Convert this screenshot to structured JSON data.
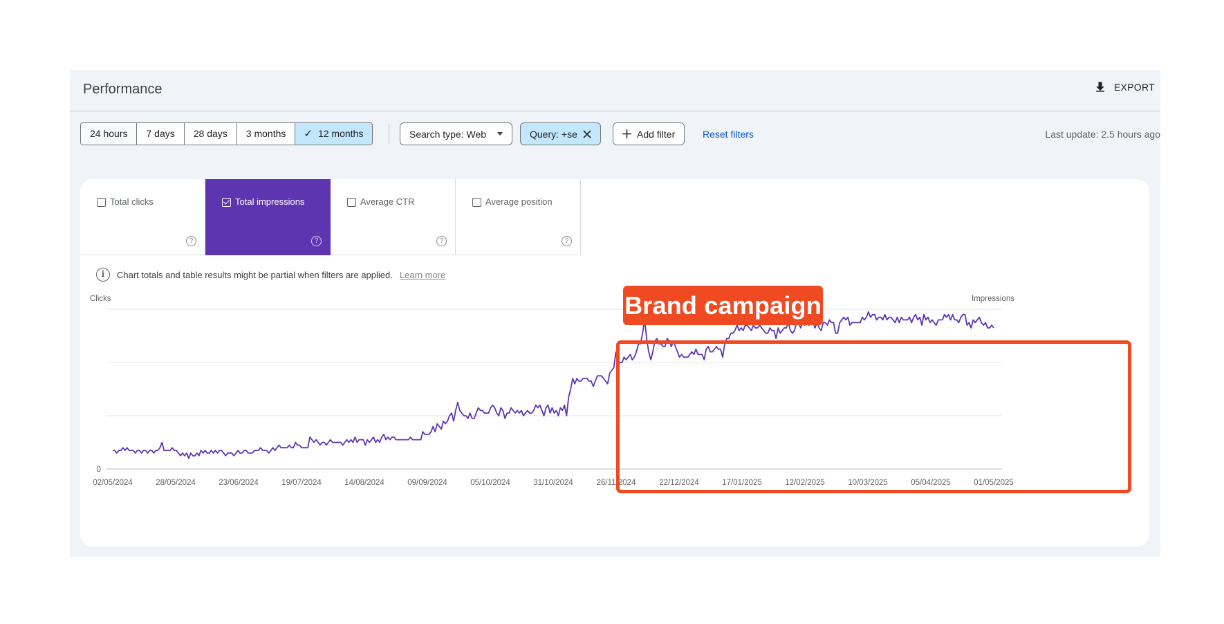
{
  "header": {
    "title": "Performance",
    "export_label": "EXPORT"
  },
  "toolbar": {
    "date_ranges": [
      "24 hours",
      "7 days",
      "28 days",
      "3 months",
      "12 months"
    ],
    "active_range": "12 months",
    "search_type": "Search type: Web",
    "query_filter": "Query: +se",
    "add_filter": "Add filter",
    "reset_filters": "Reset filters",
    "last_update": "Last update: 2.5 hours ago"
  },
  "metrics": [
    {
      "label": "Total clicks",
      "selected": false
    },
    {
      "label": "Total impressions",
      "selected": true
    },
    {
      "label": "Average CTR",
      "selected": false
    },
    {
      "label": "Average position",
      "selected": false
    }
  ],
  "notice": {
    "text": "Chart totals and table results might be partial when filters are applied.",
    "link": "Learn more"
  },
  "annotation": {
    "label": "Brand campaign"
  },
  "colors": {
    "accent": "#5e35b1",
    "annotation": "#f04a23",
    "link": "#0b57d0",
    "chip_selected": "#c2e7ff"
  },
  "chart_data": {
    "type": "line",
    "left_axis_label": "Clicks",
    "right_axis_label": "Impressions",
    "y_tick_labels": [
      "0"
    ],
    "x_tick_labels": [
      "02/05/2024",
      "28/05/2024",
      "23/06/2024",
      "19/07/2024",
      "14/08/2024",
      "09/09/2024",
      "05/10/2024",
      "31/10/2024",
      "26/11/2024",
      "22/12/2024",
      "17/01/2025",
      "12/02/2025",
      "10/03/2025",
      "05/04/2025",
      "01/05/2025"
    ],
    "x_start": "02/05/2024",
    "x_end": "01/05/2025",
    "grid": true,
    "series": [
      {
        "color": "#5e35b1",
        "values": [
          7,
          7,
          6,
          7,
          7,
          8,
          7,
          8,
          7,
          7,
          7,
          6,
          7,
          7,
          6,
          7,
          7,
          6,
          7,
          7,
          6,
          7,
          7,
          8,
          10,
          7,
          7,
          7,
          7,
          8,
          7,
          7,
          6,
          5,
          6,
          5,
          6,
          4,
          6,
          5,
          5,
          6,
          5,
          7,
          6,
          7,
          6,
          6,
          7,
          6,
          7,
          6,
          7,
          7,
          6,
          5,
          6,
          6,
          6,
          5,
          6,
          7,
          6,
          6,
          7,
          7,
          6,
          6,
          6,
          7,
          7,
          7,
          8,
          7,
          7,
          7,
          6,
          7,
          8,
          7,
          8,
          9,
          8,
          8,
          8,
          8,
          9,
          8,
          8,
          10,
          9,
          9,
          8,
          8,
          8,
          8,
          12,
          11,
          10,
          11,
          10,
          9,
          10,
          10,
          9,
          10,
          11,
          10,
          10,
          10,
          10,
          10,
          9,
          10,
          11,
          10,
          11,
          10,
          12,
          10,
          11,
          11,
          11,
          9,
          11,
          10,
          11,
          12,
          10,
          11,
          10,
          12,
          13,
          11,
          12,
          11,
          12,
          12,
          11,
          11,
          11,
          11,
          11,
          11,
          11,
          12,
          11,
          11,
          11,
          11,
          11,
          14,
          13,
          13,
          13,
          14,
          16,
          14,
          17,
          16,
          15,
          18,
          17,
          18,
          20,
          21,
          18,
          22,
          25,
          22,
          21,
          20,
          20,
          19,
          21,
          19,
          19,
          21,
          23,
          22,
          22,
          21,
          21,
          21,
          23,
          24,
          23,
          21,
          20,
          23,
          22,
          19,
          21,
          21,
          23,
          22,
          21,
          22,
          21,
          22,
          20,
          21,
          22,
          21,
          21,
          22,
          24,
          23,
          24,
          22,
          20,
          23,
          24,
          21,
          23,
          21,
          22,
          20,
          23,
          22,
          24,
          20,
          27,
          30,
          34,
          32,
          34,
          33,
          33,
          34,
          34,
          34,
          33,
          33,
          31,
          33,
          35,
          35,
          35,
          34,
          33,
          32,
          36,
          37,
          38,
          44,
          39,
          40,
          40,
          42,
          41,
          42,
          43,
          41,
          42,
          44,
          47,
          47,
          51,
          56,
          49,
          44,
          41,
          44,
          48,
          49,
          47,
          47,
          46,
          46,
          49,
          48,
          46,
          48,
          46,
          44,
          42,
          43,
          42,
          42,
          42,
          43,
          44,
          43,
          45,
          43,
          43,
          43,
          41,
          45,
          46,
          44,
          44,
          45,
          46,
          45,
          45,
          42,
          47,
          49,
          49,
          51,
          51,
          52,
          54,
          52,
          53,
          52,
          54,
          54,
          53,
          52,
          54,
          53,
          53,
          54,
          53,
          52,
          51,
          51,
          53,
          52,
          52,
          49,
          53,
          51,
          52,
          53,
          53,
          55,
          52,
          51,
          52,
          55,
          55,
          53,
          55,
          54,
          55,
          54,
          55,
          55,
          53,
          55,
          53,
          52,
          55,
          55,
          54,
          56,
          55,
          55,
          51,
          51,
          55,
          56,
          57,
          56,
          57,
          54,
          55,
          55,
          55,
          55,
          55,
          57,
          56,
          57,
          59,
          57,
          58,
          58,
          56,
          57,
          57,
          56,
          58,
          56,
          57,
          57,
          56,
          55,
          57,
          55,
          57,
          56,
          56,
          56,
          57,
          55,
          57,
          58,
          56,
          57,
          54,
          58,
          56,
          57,
          55,
          56,
          55,
          54,
          56,
          56,
          56,
          58,
          57,
          58,
          56,
          58,
          56,
          56,
          55,
          57,
          58,
          58,
          54,
          55,
          53,
          56,
          55,
          56,
          57,
          55,
          54,
          55,
          53,
          53,
          54,
          53
        ]
      }
    ]
  }
}
